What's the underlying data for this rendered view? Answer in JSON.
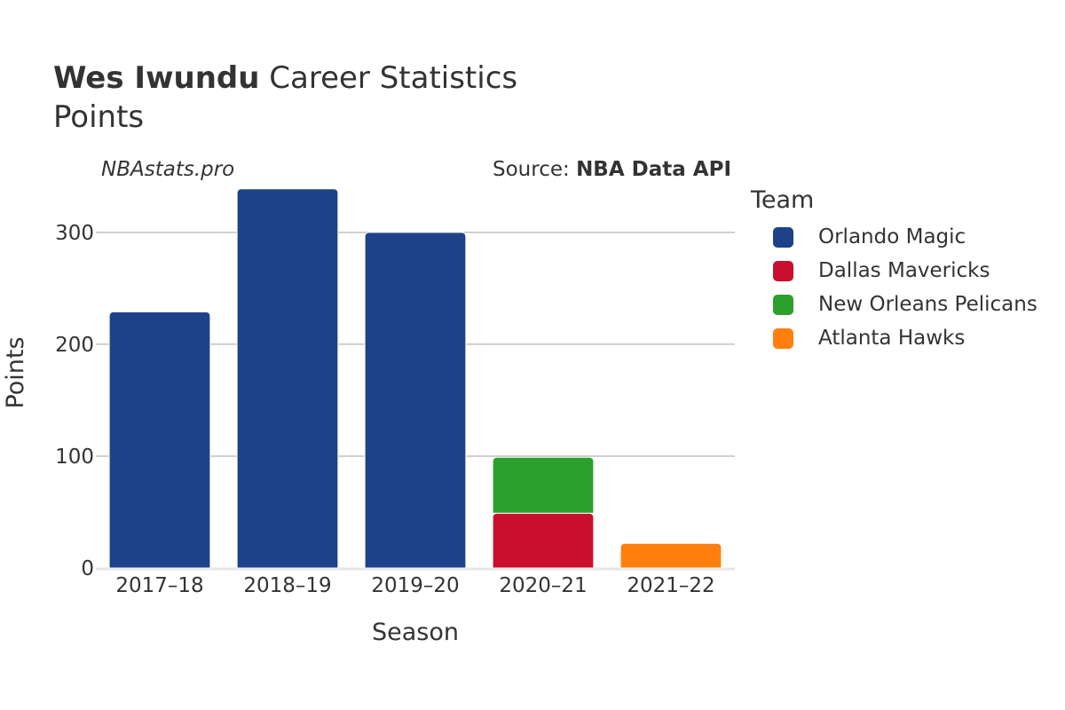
{
  "header": {
    "player": "Wes Iwundu",
    "title_rest": "Career Statistics",
    "subtitle": "Points"
  },
  "watermark": "NBAstats.pro",
  "source": {
    "prefix": "Source: ",
    "name": "NBA Data API"
  },
  "legend": {
    "title": "Team",
    "placement": "right"
  },
  "chart_data": {
    "type": "bar",
    "stacked": true,
    "categories": [
      "2017–18",
      "2018–19",
      "2019–20",
      "2020–21",
      "2021–22"
    ],
    "series": [
      {
        "name": "Orlando Magic",
        "color": "#1d428a",
        "values": [
          229,
          339,
          300,
          0,
          0
        ]
      },
      {
        "name": "Dallas Mavericks",
        "color": "#c8102e",
        "values": [
          0,
          0,
          0,
          49,
          0
        ]
      },
      {
        "name": "New Orleans Pelicans",
        "color": "#2ca02c",
        "values": [
          0,
          0,
          0,
          50,
          0
        ]
      },
      {
        "name": "Atlanta Hawks",
        "color": "#ff7f0e",
        "values": [
          0,
          0,
          0,
          0,
          22
        ]
      }
    ],
    "xlabel": "Season",
    "ylabel": "Points",
    "yticks": [
      0,
      100,
      200,
      300
    ],
    "ylim": [
      0,
      357
    ],
    "grid": true
  }
}
